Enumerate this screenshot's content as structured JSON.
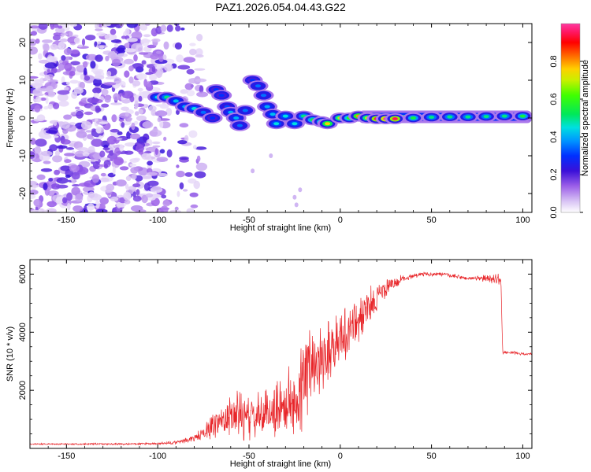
{
  "title": "PAZ1.2026.054.04.43.G22",
  "chart_data": [
    {
      "type": "heatmap",
      "name": "spectrogram",
      "xlabel": "Height of straight line (km)",
      "ylabel": "Frequency (Hz)",
      "xlim": [
        -170,
        105
      ],
      "ylim": [
        -25,
        25
      ],
      "xticks": [
        -150,
        -100,
        -50,
        0,
        50,
        100
      ],
      "yticks": [
        -20,
        -10,
        0,
        10,
        20
      ],
      "ridge": [
        {
          "x": -100,
          "y": 5.5,
          "a": 0.45
        },
        {
          "x": -95,
          "y": 5.5,
          "a": 0.5
        },
        {
          "x": -90,
          "y": 4.5,
          "a": 0.42
        },
        {
          "x": -85,
          "y": 3.0,
          "a": 0.4
        },
        {
          "x": -80,
          "y": 2.5,
          "a": 0.45
        },
        {
          "x": -75,
          "y": 1.5,
          "a": 0.35
        },
        {
          "x": -70,
          "y": 0.0,
          "a": 0.3
        },
        {
          "x": -68,
          "y": 7.5,
          "a": 0.3
        },
        {
          "x": -65,
          "y": 6.0,
          "a": 0.3
        },
        {
          "x": -62,
          "y": 3.0,
          "a": 0.32
        },
        {
          "x": -60,
          "y": 1.5,
          "a": 0.4
        },
        {
          "x": -57,
          "y": 0.0,
          "a": 0.4
        },
        {
          "x": -55,
          "y": -2.0,
          "a": 0.35
        },
        {
          "x": -52,
          "y": 2.0,
          "a": 0.35
        },
        {
          "x": -48,
          "y": 10.0,
          "a": 0.3
        },
        {
          "x": -45,
          "y": 8.5,
          "a": 0.35
        },
        {
          "x": -42,
          "y": 6.0,
          "a": 0.35
        },
        {
          "x": -40,
          "y": 3.0,
          "a": 0.4
        },
        {
          "x": -37,
          "y": 1.0,
          "a": 0.42
        },
        {
          "x": -35,
          "y": -1.5,
          "a": 0.45
        },
        {
          "x": -30,
          "y": 0.5,
          "a": 0.45
        },
        {
          "x": -25,
          "y": -1.5,
          "a": 0.45
        },
        {
          "x": -20,
          "y": 0.5,
          "a": 0.5
        },
        {
          "x": -15,
          "y": -0.5,
          "a": 0.55
        },
        {
          "x": -10,
          "y": -1.0,
          "a": 0.6
        },
        {
          "x": -7,
          "y": -1.5,
          "a": 0.75
        },
        {
          "x": 0,
          "y": 0.0,
          "a": 0.7
        },
        {
          "x": 5,
          "y": 0.0,
          "a": 0.6
        },
        {
          "x": 10,
          "y": 0.5,
          "a": 0.8
        },
        {
          "x": 15,
          "y": 0.0,
          "a": 0.7
        },
        {
          "x": 20,
          "y": -0.2,
          "a": 0.95
        },
        {
          "x": 25,
          "y": -0.2,
          "a": 1.0
        },
        {
          "x": 30,
          "y": -0.2,
          "a": 0.95
        },
        {
          "x": 40,
          "y": 0.0,
          "a": 0.55
        },
        {
          "x": 50,
          "y": 0.2,
          "a": 0.5
        },
        {
          "x": 60,
          "y": 0.3,
          "a": 0.5
        },
        {
          "x": 70,
          "y": 0.3,
          "a": 0.5
        },
        {
          "x": 80,
          "y": 0.4,
          "a": 0.5
        },
        {
          "x": 90,
          "y": 0.5,
          "a": 0.5
        },
        {
          "x": 100,
          "y": 0.5,
          "a": 0.55
        }
      ]
    },
    {
      "type": "colorbar",
      "name": "colorbar",
      "label": "Normalized spectral amplitude",
      "range": [
        0,
        1
      ],
      "ticks": [
        "0.0",
        "0.2",
        "0.4",
        "0.6",
        "0.8"
      ]
    },
    {
      "type": "line",
      "name": "snr",
      "xlabel": "Height of straight line (km)",
      "ylabel": "SNR (10 * v/v)",
      "xlim": [
        -170,
        105
      ],
      "ylim": [
        0,
        6500
      ],
      "xticks": [
        -150,
        -100,
        -50,
        0,
        50,
        100
      ],
      "yticks": [
        2000,
        4000,
        6000
      ],
      "color": "#e8262a",
      "x": [
        -170,
        -150,
        -120,
        -100,
        -90,
        -80,
        -75,
        -70,
        -65,
        -60,
        -55,
        -50,
        -45,
        -40,
        -35,
        -30,
        -25,
        -22,
        -18,
        -15,
        -10,
        -5,
        0,
        5,
        10,
        15,
        20,
        25,
        30,
        35,
        40,
        45,
        50,
        55,
        60,
        65,
        70,
        75,
        80,
        85,
        88,
        89,
        95,
        100,
        105
      ],
      "y": [
        150,
        150,
        150,
        160,
        200,
        350,
        500,
        800,
        1000,
        1100,
        1200,
        1000,
        1100,
        1200,
        1400,
        1500,
        1600,
        2000,
        2600,
        3000,
        3200,
        3500,
        3800,
        4100,
        4400,
        4800,
        5200,
        5500,
        5700,
        5850,
        5950,
        6000,
        6000,
        6000,
        5950,
        5900,
        5850,
        5850,
        5850,
        5850,
        5800,
        3300,
        3300,
        3250,
        3250
      ],
      "amp": [
        30,
        30,
        40,
        40,
        80,
        150,
        300,
        500,
        700,
        900,
        1000,
        900,
        900,
        1000,
        1200,
        1300,
        1500,
        1800,
        1800,
        1600,
        1400,
        1300,
        1200,
        1100,
        1000,
        800,
        600,
        400,
        250,
        150,
        100,
        80,
        80,
        80,
        80,
        80,
        80,
        100,
        150,
        200,
        200,
        60,
        50,
        50,
        50
      ]
    }
  ]
}
